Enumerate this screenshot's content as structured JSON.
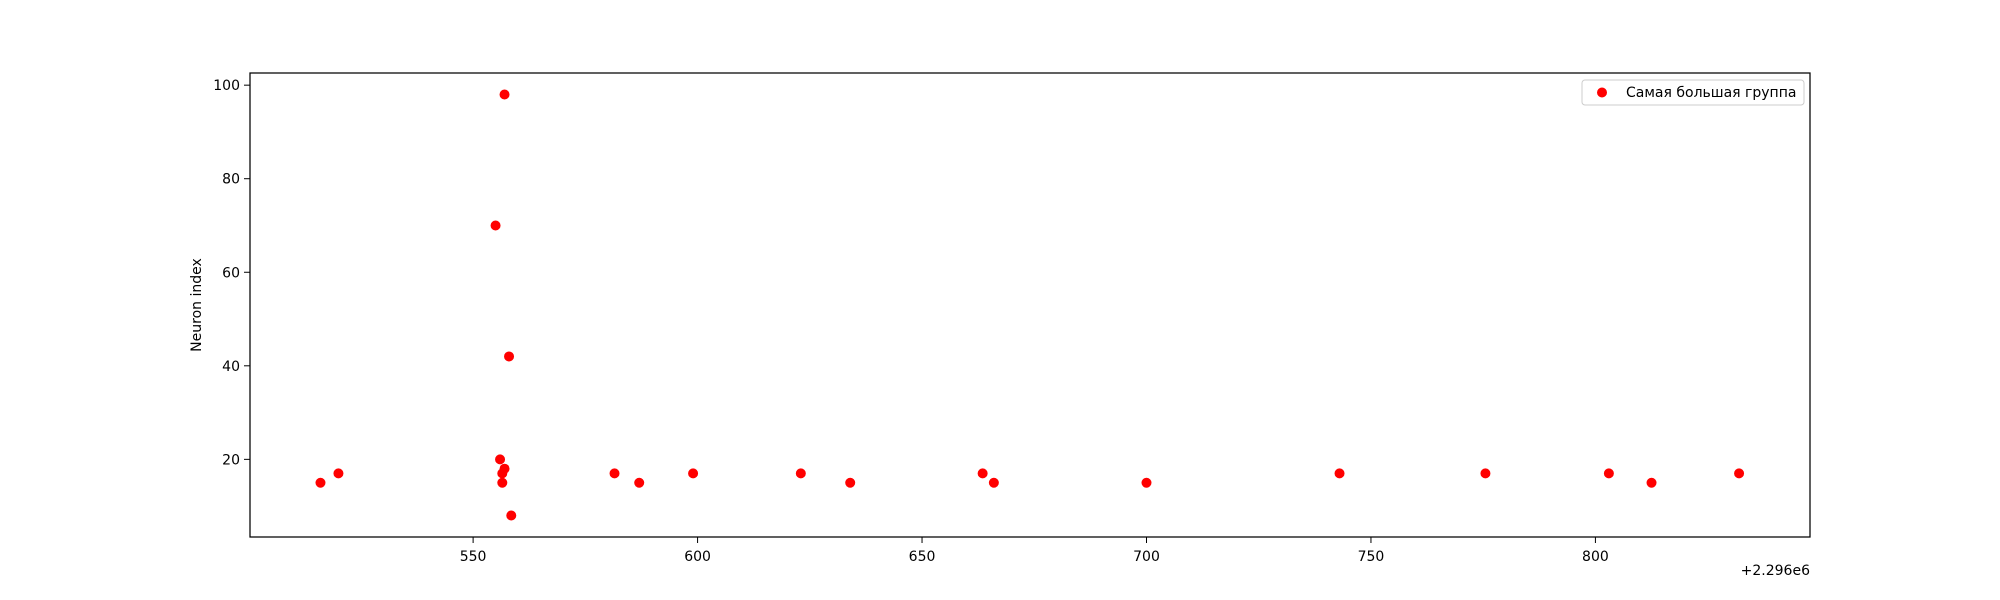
{
  "chart_data": {
    "type": "scatter",
    "title": "",
    "xlabel": "",
    "ylabel": "Neuron index",
    "x_offset_label": "+2.296e6",
    "xlim": [
      500.3,
      847.8
    ],
    "ylim": [
      3.4,
      102.6
    ],
    "xticks": [
      550,
      600,
      650,
      700,
      750,
      800
    ],
    "xtick_labels": [
      "550",
      "600",
      "650",
      "700",
      "750",
      "800"
    ],
    "yticks": [
      20,
      40,
      60,
      80,
      100
    ],
    "ytick_labels": [
      "20",
      "40",
      "60",
      "80",
      "100"
    ],
    "grid": false,
    "legend_position": "top-right",
    "colors": {
      "series": "#ff0000",
      "axes": "#000000",
      "background": "#ffffff"
    },
    "series": [
      {
        "name": "Самая большая группа",
        "color": "#ff0000",
        "points": [
          {
            "x": 516,
            "y": 15
          },
          {
            "x": 520,
            "y": 17
          },
          {
            "x": 555,
            "y": 70
          },
          {
            "x": 556,
            "y": 20
          },
          {
            "x": 556.5,
            "y": 17
          },
          {
            "x": 556.5,
            "y": 15
          },
          {
            "x": 557,
            "y": 98
          },
          {
            "x": 557,
            "y": 18
          },
          {
            "x": 558,
            "y": 42
          },
          {
            "x": 558.5,
            "y": 8
          },
          {
            "x": 581.5,
            "y": 17
          },
          {
            "x": 587,
            "y": 15
          },
          {
            "x": 599,
            "y": 17
          },
          {
            "x": 623,
            "y": 17
          },
          {
            "x": 634,
            "y": 15
          },
          {
            "x": 663.5,
            "y": 17
          },
          {
            "x": 666,
            "y": 15
          },
          {
            "x": 700,
            "y": 15
          },
          {
            "x": 743,
            "y": 17
          },
          {
            "x": 775.5,
            "y": 17
          },
          {
            "x": 803,
            "y": 17
          },
          {
            "x": 812.5,
            "y": 15
          },
          {
            "x": 832,
            "y": 17
          }
        ]
      }
    ]
  }
}
